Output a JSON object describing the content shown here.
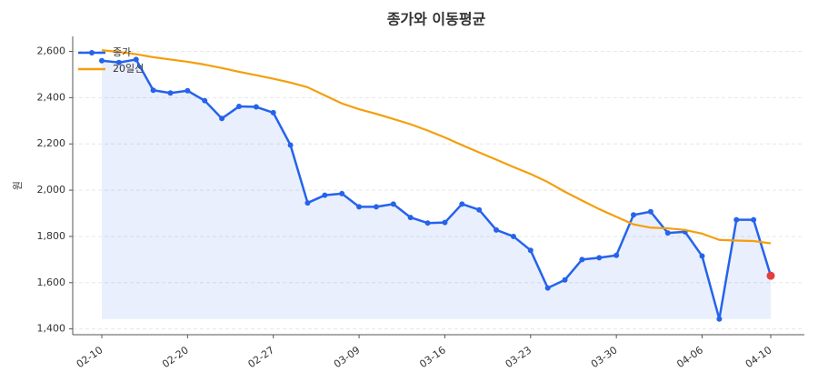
{
  "chart_data": {
    "type": "line",
    "title": "종가와 이동평균",
    "y_label": "원",
    "categories": [
      "02-10",
      null,
      null,
      null,
      null,
      "02-20",
      null,
      null,
      null,
      null,
      "02-27",
      null,
      null,
      null,
      null,
      "03-09",
      null,
      null,
      null,
      null,
      "03-16",
      null,
      null,
      null,
      null,
      "03-23",
      null,
      null,
      null,
      null,
      "03-30",
      null,
      null,
      null,
      null,
      "04-06",
      null,
      null,
      null,
      "04-10"
    ],
    "series": [
      {
        "name": "종가",
        "color": "#2563eb",
        "markers": true,
        "fill": true,
        "last_point_color": "#e53e3e",
        "values": [
          2560,
          2552,
          2565,
          2432,
          2420,
          2430,
          2387,
          2310,
          2362,
          2360,
          2335,
          2195,
          1945,
          1978,
          1985,
          1928,
          1928,
          1940,
          1882,
          1858,
          1860,
          1940,
          1915,
          1828,
          1800,
          1740,
          1577,
          1612,
          1700,
          1708,
          1718,
          1893,
          1907,
          1815,
          1820,
          1715,
          1443,
          1872,
          1872,
          1630
        ]
      },
      {
        "name": "20일선",
        "color": "#f59e0b",
        "markers": false,
        "fill": false,
        "values": [
          2605,
          2598,
          2588,
          2575,
          2565,
          2555,
          2543,
          2528,
          2512,
          2497,
          2482,
          2465,
          2445,
          2410,
          2375,
          2350,
          2330,
          2308,
          2285,
          2258,
          2228,
          2195,
          2163,
          2132,
          2100,
          2070,
          2035,
          1993,
          1955,
          1918,
          1885,
          1852,
          1838,
          1835,
          1828,
          1812,
          1785,
          1782,
          1780,
          1770
        ]
      }
    ],
    "ylim": [
      1375,
      2665
    ],
    "yticks": [
      {
        "value": 1400,
        "label": "1,400"
      },
      {
        "value": 1600,
        "label": "1,600"
      },
      {
        "value": 1800,
        "label": "1,800"
      },
      {
        "value": 2000,
        "label": "2,000"
      },
      {
        "value": 2200,
        "label": "2,200"
      },
      {
        "value": 2400,
        "label": "2,400"
      },
      {
        "value": 2600,
        "label": "2,600"
      }
    ],
    "grid": true,
    "legend": "upper-left"
  }
}
